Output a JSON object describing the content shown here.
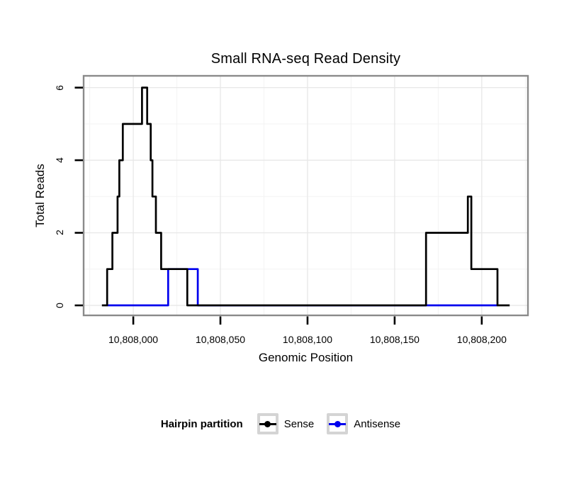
{
  "title": "Small RNA-seq Read Density",
  "chart_data": {
    "type": "line",
    "subtype": "step",
    "title": "Small RNA-seq Read Density",
    "xlabel": "Genomic Position",
    "ylabel": "Total Reads",
    "legend_title": "Hairpin partition",
    "legend_position": "bottom",
    "grid": "major-and-minor",
    "xlim": [
      10807971.5,
      10808226.5
    ],
    "ylim": [
      -0.275,
      6.325
    ],
    "x_ticks": [
      {
        "value": 10808000,
        "label": "10,808,000"
      },
      {
        "value": 10808050,
        "label": "10,808,050"
      },
      {
        "value": 10808100,
        "label": "10,808,100"
      },
      {
        "value": 10808150,
        "label": "10,808,150"
      },
      {
        "value": 10808200,
        "label": "10,808,200"
      }
    ],
    "y_ticks": [
      {
        "value": 0,
        "label": "0"
      },
      {
        "value": 2,
        "label": "2"
      },
      {
        "value": 4,
        "label": "4"
      },
      {
        "value": 6,
        "label": "6"
      }
    ],
    "x_minor_ticks": [
      10807975,
      10808025,
      10808075,
      10808125,
      10808175,
      10808225
    ],
    "y_minor_ticks": [
      1,
      3,
      5
    ],
    "series": [
      {
        "name": "Antisense",
        "color": "#0000ee",
        "steps": [
          [
            10807985,
            0
          ],
          [
            10808020,
            1
          ],
          [
            10808037,
            0
          ]
        ],
        "end": 10808209
      },
      {
        "name": "Sense",
        "color": "#000000",
        "steps": [
          [
            10807982,
            0
          ],
          [
            10807985,
            1
          ],
          [
            10807988,
            2
          ],
          [
            10807991,
            3
          ],
          [
            10807992,
            4
          ],
          [
            10807994,
            5
          ],
          [
            10808005,
            6
          ],
          [
            10808008,
            5
          ],
          [
            10808010,
            4
          ],
          [
            10808011,
            3
          ],
          [
            10808013,
            2
          ],
          [
            10808016,
            1
          ],
          [
            10808031,
            0
          ],
          [
            10808168,
            2
          ],
          [
            10808192,
            3
          ],
          [
            10808194,
            1
          ],
          [
            10808209,
            0
          ]
        ],
        "end": 10808216
      }
    ],
    "legend_entries": [
      {
        "label": "Sense",
        "color": "#000000"
      },
      {
        "label": "Antisense",
        "color": "#0000ee"
      }
    ]
  }
}
